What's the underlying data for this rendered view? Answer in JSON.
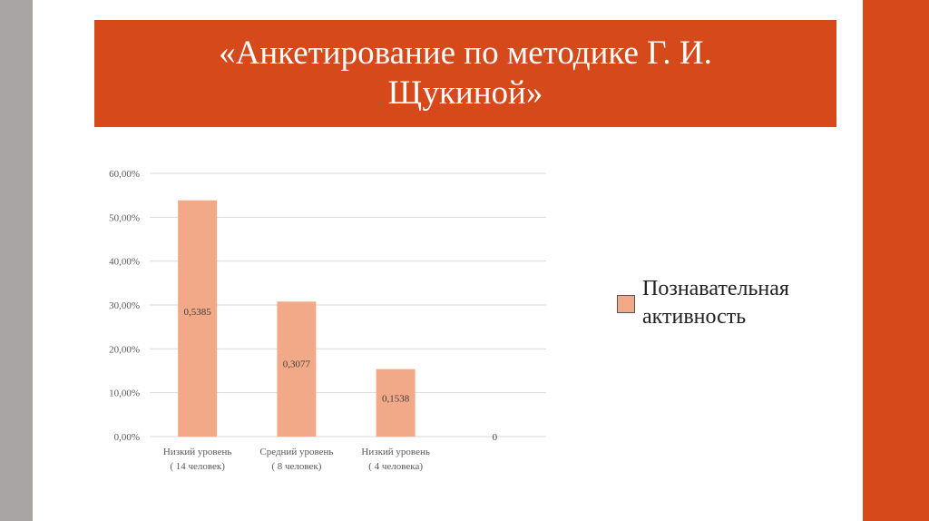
{
  "slide": {
    "title": "«Анкетирование по методике Г. И. Щукиной»",
    "colors": {
      "accent": "#d6491b",
      "stripe": "#a9a5a4",
      "bar": "#f2a987"
    }
  },
  "chart_data": {
    "type": "bar",
    "categories": [
      [
        "Низкий уровень",
        "( 14 человек)"
      ],
      [
        "Средний уровень",
        "( 8 человек)"
      ],
      [
        "Низкий уровень",
        "( 4 человека)"
      ],
      [
        "",
        ""
      ]
    ],
    "series": [
      {
        "name": "Познавательная активность",
        "values": [
          0.5385,
          0.3077,
          0.1538,
          0
        ],
        "data_labels": [
          "0,5385",
          "0,3077",
          "0,1538",
          "0"
        ],
        "color": "#f2a987"
      }
    ],
    "ylim": [
      0,
      0.6
    ],
    "yticks": [
      "0,00%",
      "10,00%",
      "20,00%",
      "30,00%",
      "40,00%",
      "50,00%",
      "60,00%"
    ],
    "grid": true,
    "legend": "right"
  }
}
